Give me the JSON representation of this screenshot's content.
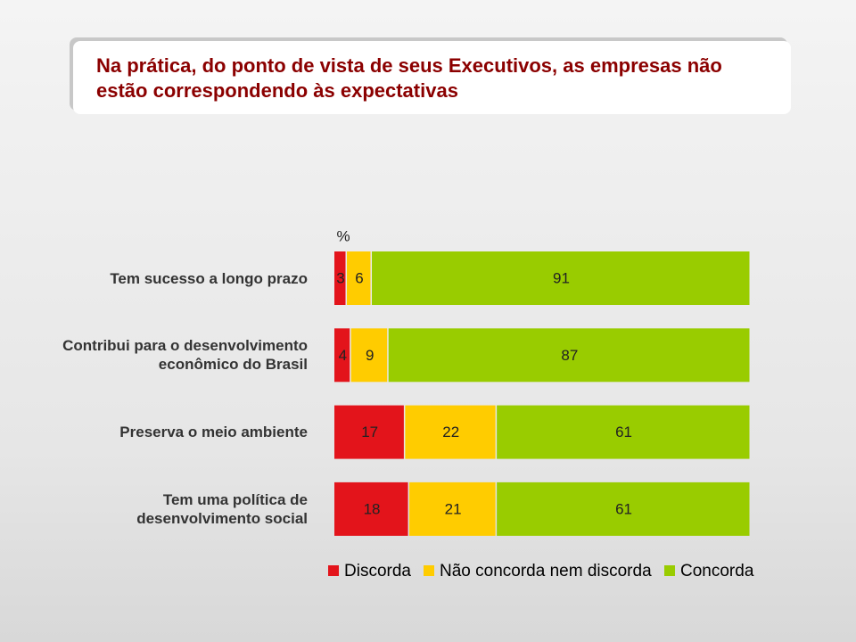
{
  "chart_data": {
    "type": "stacked-bar-horizontal",
    "title": "Na prática, do ponto de vista de seus Executivos, as empresas não estão correspondendo às expectativas",
    "unit": "%",
    "categories": [
      "Tem sucesso a longo prazo",
      "Contribui para o desenvolvimento econômico do Brasil",
      "Preserva o meio ambiente",
      "Tem uma política de desenvolvimento social"
    ],
    "series": [
      {
        "name": "Discorda",
        "color": "#e3141b",
        "values": [
          3,
          4,
          17,
          18
        ]
      },
      {
        "name": "Não concorda nem discorda",
        "color": "#ffcc00",
        "values": [
          6,
          9,
          22,
          21
        ]
      },
      {
        "name": "Concorda",
        "color": "#99cc00",
        "values": [
          91,
          87,
          61,
          61
        ]
      }
    ],
    "xlim": [
      0,
      100
    ],
    "legend": "bottom"
  }
}
